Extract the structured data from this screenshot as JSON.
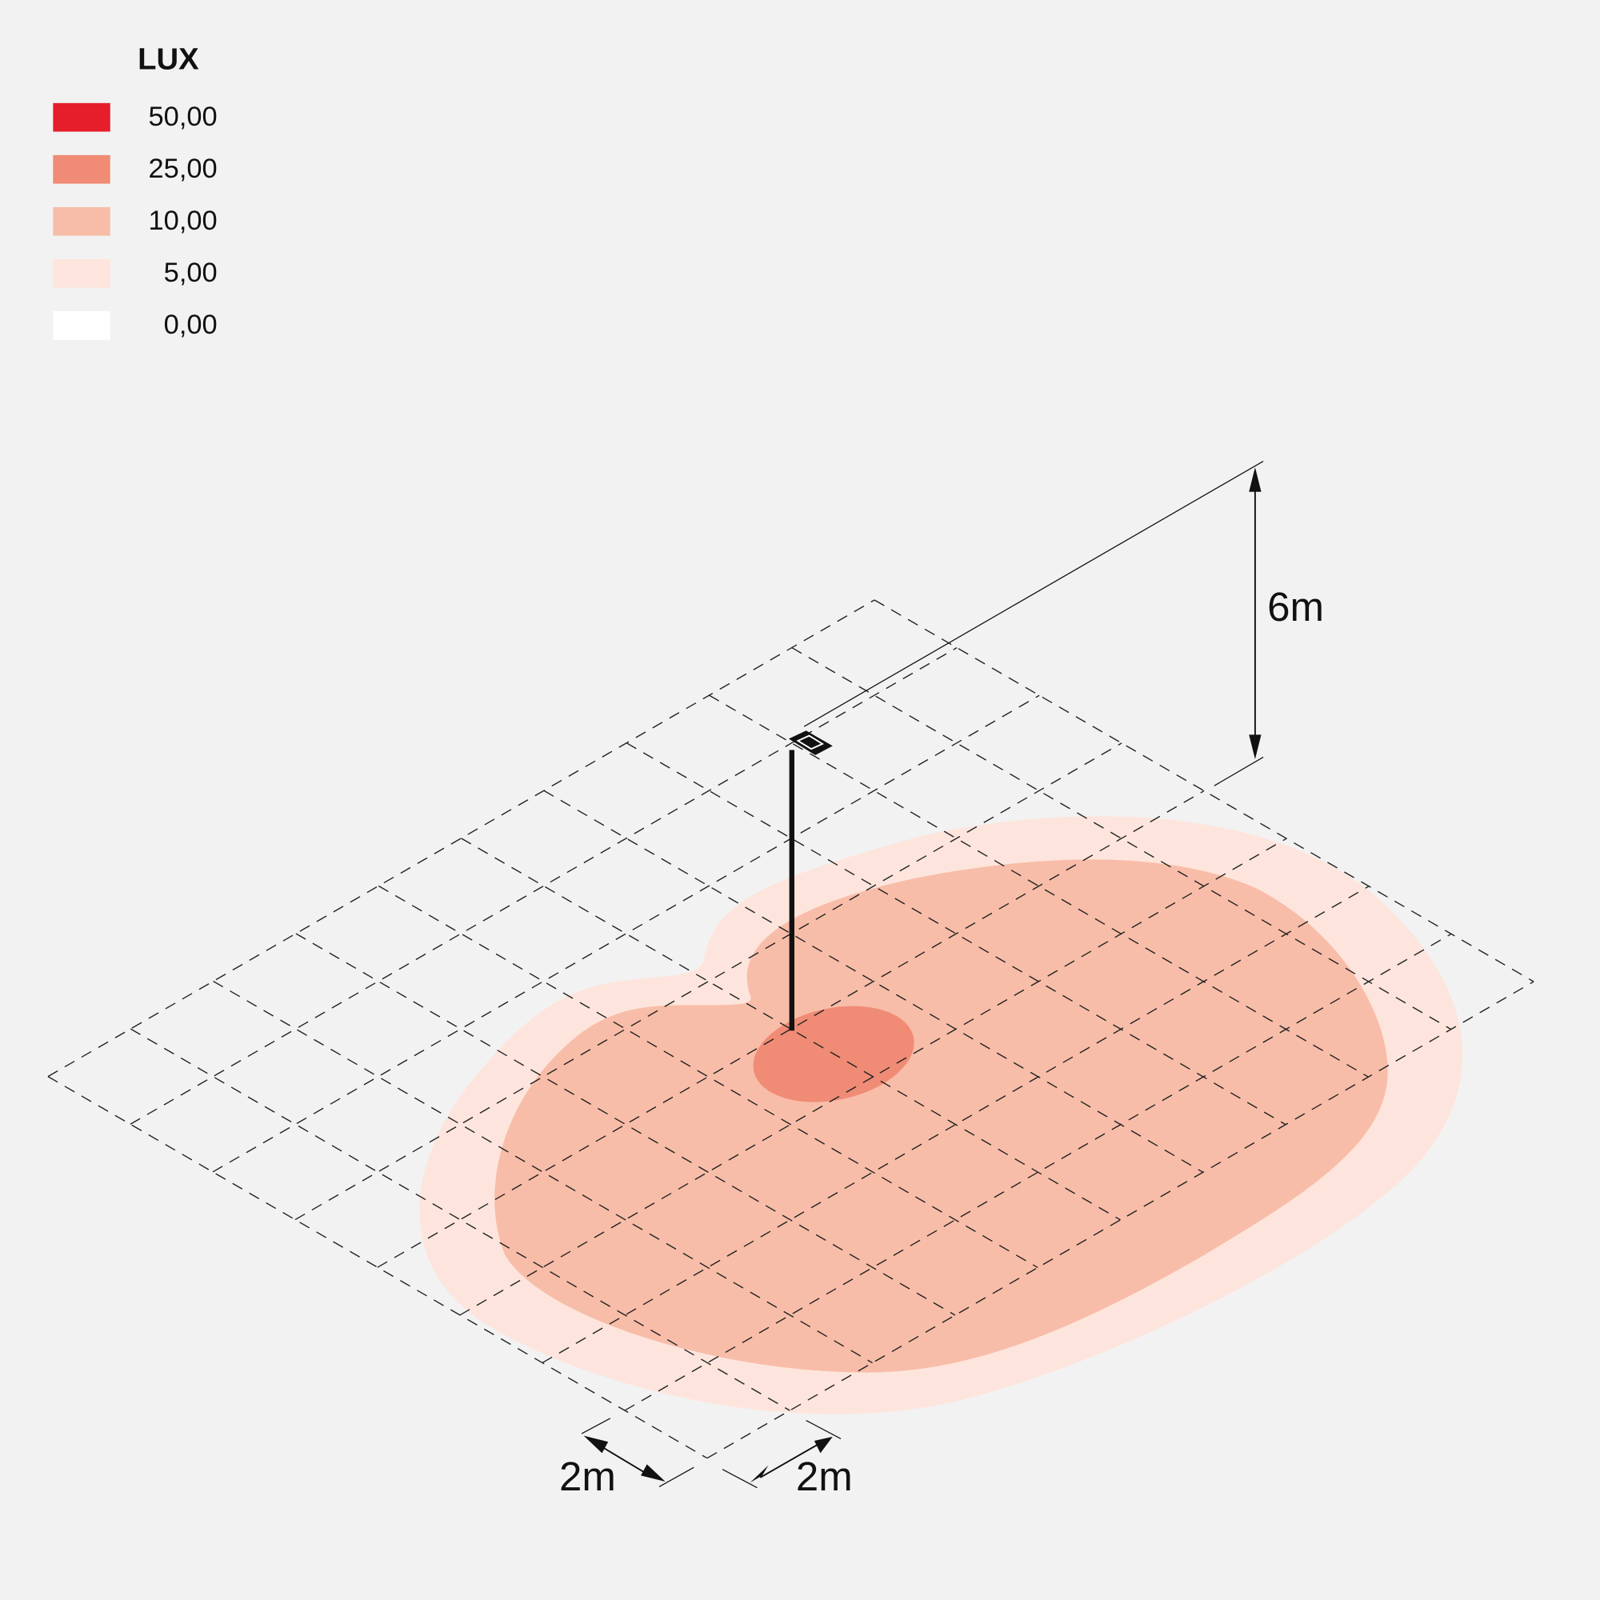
{
  "legend": {
    "title": "LUX",
    "items": [
      {
        "label": "50,00",
        "color": "#e61e2b"
      },
      {
        "label": "25,00",
        "color": "#f08b75"
      },
      {
        "label": "10,00",
        "color": "#f8bda8"
      },
      {
        "label": "5,00",
        "color": "#fde5dd"
      },
      {
        "label": "0,00",
        "color": "#ffffff"
      }
    ]
  },
  "dimensions": {
    "height": "6m",
    "grid_a": "2m",
    "grid_b": "2m"
  }
}
